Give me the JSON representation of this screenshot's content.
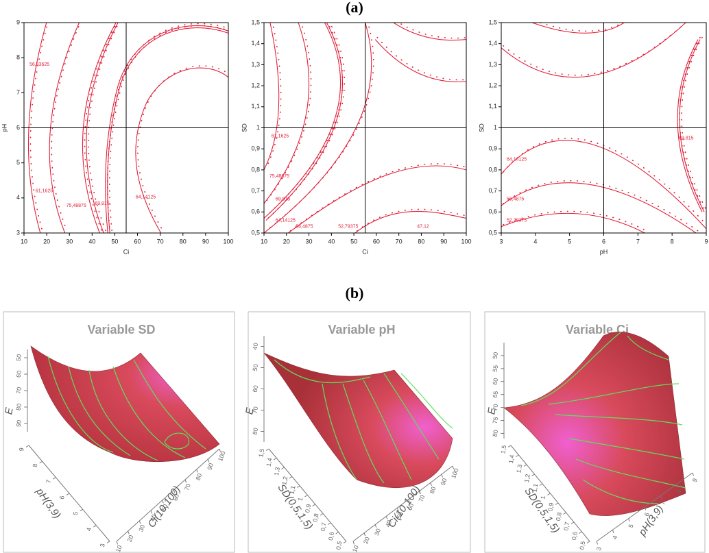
{
  "figure_labels": [
    "(a)",
    "(b)"
  ],
  "chart_data": [
    {
      "type": "contour",
      "xlabel": "Ci",
      "ylabel": "pH",
      "xlim": [
        10,
        100
      ],
      "ylim": [
        3,
        9
      ],
      "xticks": [
        10,
        20,
        30,
        40,
        50,
        60,
        70,
        80,
        90,
        100
      ],
      "yticks": [
        3,
        4,
        5,
        6,
        7,
        8,
        9
      ],
      "crosshair": {
        "x": 55,
        "y": 6
      },
      "color": "#e0203a",
      "contour_labels": [
        {
          "value": 56.83625,
          "label": "56,83625"
        },
        {
          "value": 61.1625,
          "label": "61,1625"
        },
        {
          "value": 75.48875,
          "label": "75,48875"
        },
        {
          "value": 69.815,
          "label": "69,815"
        },
        {
          "value": 64.14125,
          "label": "64,14125"
        }
      ]
    },
    {
      "type": "contour",
      "xlabel": "Ci",
      "ylabel": "SD",
      "xlim": [
        10,
        100
      ],
      "ylim": [
        0.5,
        1.5
      ],
      "xticks": [
        10,
        20,
        30,
        40,
        50,
        60,
        70,
        80,
        90,
        100
      ],
      "yticks": [
        {
          "value": 0.5,
          "label": "0,5"
        },
        {
          "value": 0.6,
          "label": "0,6"
        },
        {
          "value": 0.7,
          "label": "0,7"
        },
        {
          "value": 0.8,
          "label": "0,8"
        },
        {
          "value": 0.9,
          "label": "0,9"
        },
        1,
        {
          "value": 1.1,
          "label": "1,1"
        },
        {
          "value": 1.2,
          "label": "1,2"
        },
        {
          "value": 1.3,
          "label": "1,3"
        },
        {
          "value": 1.4,
          "label": "1,4"
        },
        {
          "value": 1.5,
          "label": "1,5"
        }
      ],
      "crosshair": {
        "x": 55,
        "y": 1
      },
      "color": "#e0203a",
      "contour_labels": [
        {
          "value": 61.1625,
          "label": "61,1625"
        },
        {
          "value": 75.48875,
          "label": "75,48875"
        },
        {
          "value": 69.815,
          "label": "69,815"
        },
        {
          "value": 64.14125,
          "label": "64,14125"
        },
        {
          "value": 56.4875,
          "label": "56,4875"
        },
        {
          "value": 52.79375,
          "label": "52,79375"
        },
        {
          "value": 47.12,
          "label": "47,12"
        }
      ]
    },
    {
      "type": "contour",
      "xlabel": "pH",
      "ylabel": "SD",
      "xlim": [
        3,
        9
      ],
      "ylim": [
        0.5,
        1.5
      ],
      "xticks": [
        3,
        4,
        5,
        6,
        7,
        8,
        9
      ],
      "yticks": [
        {
          "value": 0.5,
          "label": "0,5"
        },
        {
          "value": 0.6,
          "label": "0,6"
        },
        {
          "value": 0.7,
          "label": "0,7"
        },
        {
          "value": 0.8,
          "label": "0,8"
        },
        {
          "value": 0.9,
          "label": "0,9"
        },
        1,
        {
          "value": 1.1,
          "label": "1,1"
        },
        {
          "value": 1.2,
          "label": "1,2"
        },
        {
          "value": 1.3,
          "label": "1,3"
        },
        {
          "value": 1.4,
          "label": "1,4"
        },
        {
          "value": 1.5,
          "label": "1,5"
        }
      ],
      "crosshair": {
        "x": 6,
        "y": 1
      },
      "color": "#e0203a",
      "contour_labels": [
        {
          "value": 69.815,
          "label": "69,815"
        },
        {
          "value": 64.14125,
          "label": "64,14125"
        },
        {
          "value": 56.4875,
          "label": "56,4875"
        },
        {
          "value": 52.79375,
          "label": "52,79375"
        }
      ]
    },
    {
      "type": "surface3d",
      "title": "Variable SD",
      "zlabel": "E",
      "xlabel": "pH(3,9)",
      "ylabel": "Ci(10,100)",
      "zlim": [
        45,
        95
      ],
      "zticks": [
        50,
        60,
        70,
        80,
        90
      ],
      "xlim": [
        9,
        3
      ],
      "xticks": [
        3,
        4,
        5,
        6,
        7,
        8,
        9
      ],
      "ylim": [
        10,
        100
      ],
      "yticks": [
        10,
        20,
        30,
        40,
        50,
        60,
        70,
        80,
        90,
        100
      ]
    },
    {
      "type": "surface3d",
      "title": "Variable pH",
      "zlabel": "E",
      "xlabel": "SD(0,5,1,5)",
      "ylabel": "Ci(10,100)",
      "zlim": [
        35,
        85
      ],
      "zticks": [
        40,
        50,
        60,
        70,
        80
      ],
      "xlim": [
        1.5,
        0.5
      ],
      "xticks": [
        {
          "value": 0.5,
          "label": "0,5"
        },
        {
          "value": 0.6,
          "label": "0,6"
        },
        {
          "value": 0.7,
          "label": "0,7"
        },
        {
          "value": 0.8,
          "label": "0,8"
        },
        {
          "value": 0.9,
          "label": "0,9"
        },
        1,
        {
          "value": 1.1,
          "label": "1,1"
        },
        {
          "value": 1.2,
          "label": "1,2"
        },
        {
          "value": 1.3,
          "label": "1,3"
        },
        {
          "value": 1.4,
          "label": "1,4"
        },
        {
          "value": 1.5,
          "label": "1,5"
        }
      ],
      "ylim": [
        10,
        100
      ],
      "yticks": [
        10,
        20,
        30,
        40,
        50,
        60,
        70,
        80,
        90,
        100
      ]
    },
    {
      "type": "surface3d",
      "title": "Variable Ci",
      "zlabel": "E",
      "xlabel": "SD(0,5,1,5)",
      "ylabel": "pH(3,9)",
      "zlim": [
        45,
        82
      ],
      "zticks": [
        50,
        55,
        60,
        65,
        70,
        75,
        80
      ],
      "xlim": [
        1.5,
        0.5
      ],
      "xticks": [
        {
          "value": 0.5,
          "label": "0,5"
        },
        {
          "value": 0.6,
          "label": "0,6"
        },
        {
          "value": 0.7,
          "label": "0,7"
        },
        {
          "value": 0.8,
          "label": "0,8"
        },
        {
          "value": 0.9,
          "label": "0,9"
        },
        1,
        {
          "value": 1.1,
          "label": "1,1"
        },
        {
          "value": 1.2,
          "label": "1,2"
        },
        {
          "value": 1.3,
          "label": "1,3"
        },
        {
          "value": 1.4,
          "label": "1,4"
        },
        {
          "value": 1.5,
          "label": "1,5"
        }
      ],
      "ylim": [
        3,
        9
      ],
      "yticks": [
        3,
        4,
        5,
        6,
        7,
        8,
        9
      ]
    }
  ]
}
